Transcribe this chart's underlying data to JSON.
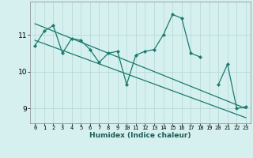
{
  "xlabel": "Humidex (Indice chaleur)",
  "bg_color": "#d6f0f0",
  "grid_color": "#b8dada",
  "line_color": "#1a7a6e",
  "x_data": [
    0,
    1,
    2,
    3,
    4,
    5,
    6,
    7,
    8,
    9,
    10,
    11,
    12,
    13,
    14,
    15,
    16,
    17,
    18,
    19,
    20,
    21,
    22,
    23
  ],
  "y_main": [
    10.7,
    11.1,
    11.25,
    10.5,
    10.9,
    10.85,
    10.6,
    10.25,
    10.5,
    10.55,
    9.65,
    10.45,
    10.55,
    10.6,
    11.0,
    11.55,
    11.45,
    10.5,
    10.4,
    null,
    9.65,
    10.2,
    9.0,
    9.05
  ],
  "trend_upper_start": 11.3,
  "trend_upper_end": 9.0,
  "trend_lower_start": 10.85,
  "trend_lower_end": 8.75,
  "ylim": [
    8.6,
    11.9
  ],
  "yticks": [
    9,
    10,
    11
  ],
  "xticks": [
    0,
    1,
    2,
    3,
    4,
    5,
    6,
    7,
    8,
    9,
    10,
    11,
    12,
    13,
    14,
    15,
    16,
    17,
    18,
    19,
    20,
    21,
    22,
    23
  ]
}
